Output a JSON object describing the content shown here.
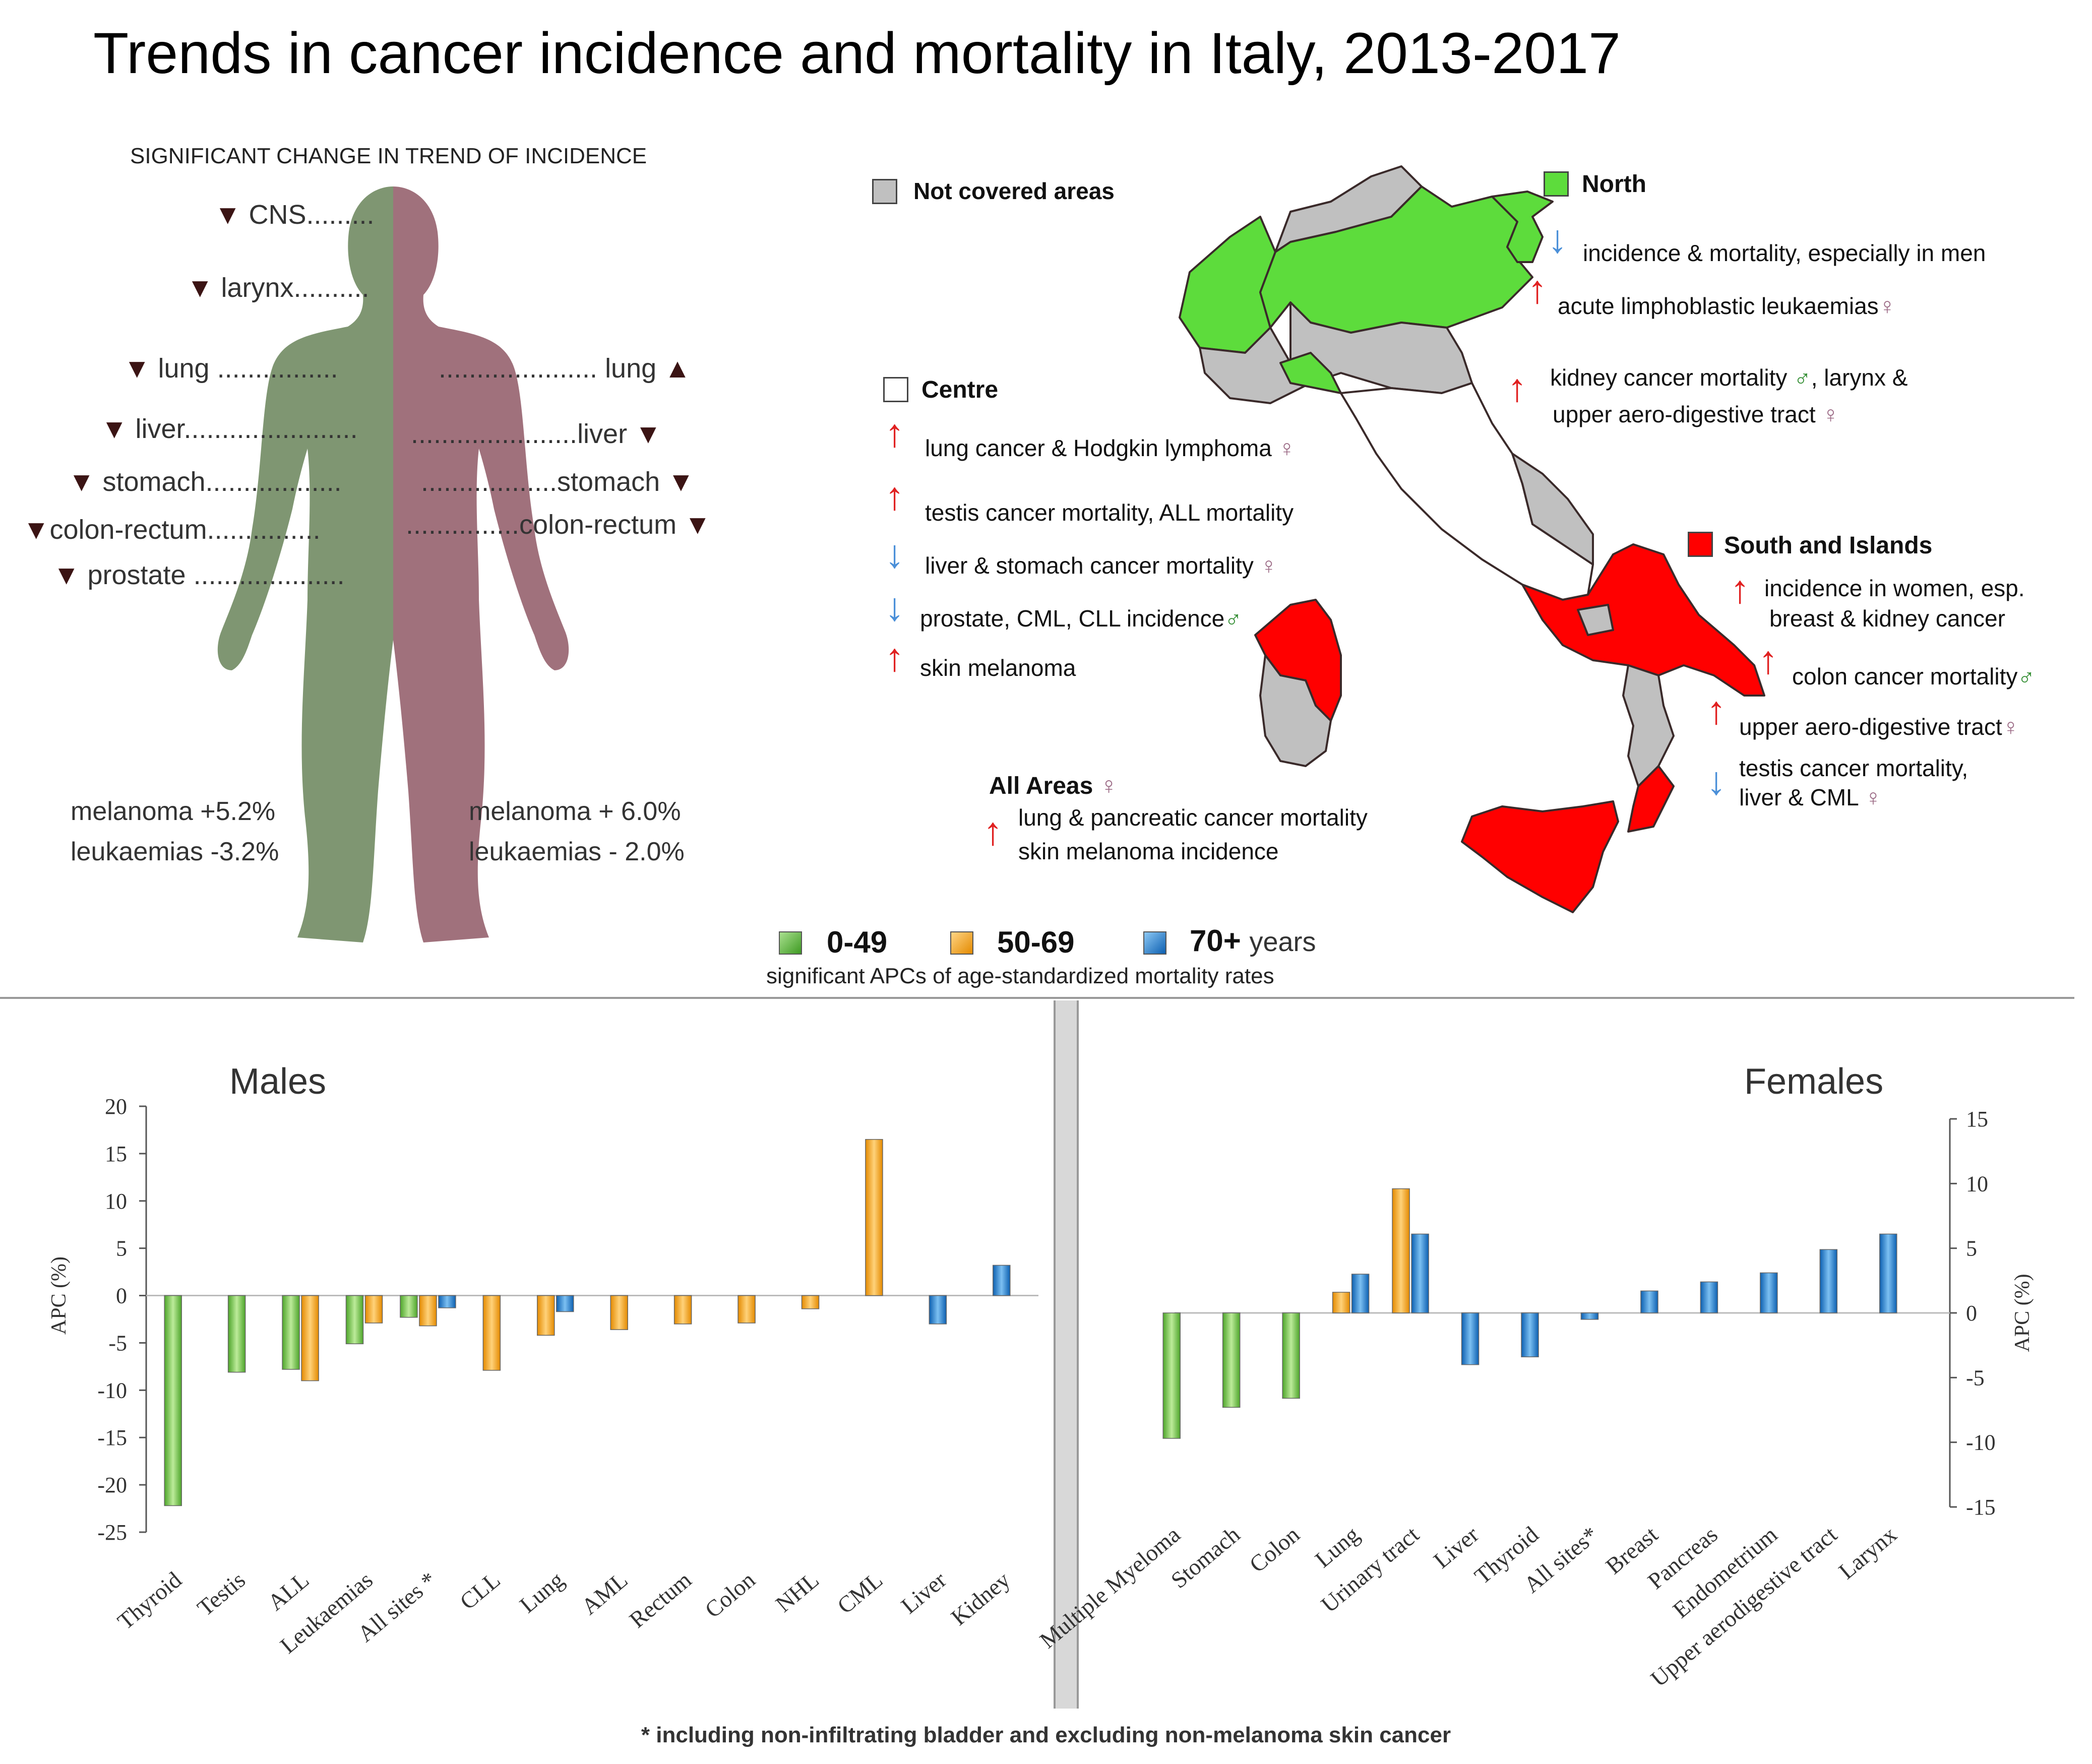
{
  "title": "Trends in cancer incidence and mortality in Italy, 2013-2017",
  "body_panel": {
    "caption": "SIGNIFICANT CHANGE IN TREND OF INCIDENCE",
    "male_organs": [
      {
        "arrow": "▼",
        "text": "CNS........."
      },
      {
        "arrow": "▼",
        "text": "larynx.........."
      },
      {
        "arrow": "▼",
        "text": "lung ................"
      },
      {
        "arrow": "▼",
        "text": "liver......................."
      },
      {
        "arrow": "▼",
        "text": "stomach.................."
      },
      {
        "arrow": "▼",
        "text": "colon-rectum..............."
      },
      {
        "arrow": "▼",
        "text": "prostate ...................."
      }
    ],
    "female_organs": [
      {
        "arrow": "▲",
        "text": "..................... lung"
      },
      {
        "arrow": "▼",
        "text": "......................liver"
      },
      {
        "arrow": "▼",
        "text": "..................stomach"
      },
      {
        "arrow": "▼",
        "text": "...............colon-rectum"
      }
    ],
    "male_stats": [
      "melanoma +5.2%",
      "leukaemias -3.2%"
    ],
    "female_stats": [
      "melanoma + 6.0%",
      "leukaemias - 2.0%"
    ],
    "colors": {
      "male": "#7f9672",
      "female": "#a0717c"
    }
  },
  "map_panel": {
    "not_covered": "Not covered areas",
    "north": {
      "title": "North",
      "notes": [
        "incidence & mortality, especially in men",
        "acute limphoblastic leukaemias",
        "kidney cancer mortality",
        ", larynx &",
        "upper aero-digestive tract"
      ]
    },
    "centre": {
      "title": "Centre",
      "notes": [
        "lung cancer & Hodgkin lymphoma",
        "testis cancer mortality, ALL mortality",
        "liver & stomach cancer mortality",
        "prostate, CML, CLL incidence",
        "skin melanoma"
      ]
    },
    "south": {
      "title": "South and Islands",
      "notes": [
        "incidence in women, esp.",
        "breast & kidney cancer",
        "colon cancer mortality",
        "upper aero-digestive tract",
        "testis cancer mortality,",
        "liver & CML"
      ]
    },
    "all_areas": {
      "title": "All Areas",
      "notes": [
        "lung & pancreatic cancer mortality",
        "skin melanoma incidence"
      ]
    },
    "symbols": {
      "female": "♀",
      "male": "♂",
      "up": "↑",
      "down": "↓"
    },
    "colors": {
      "north": "#5ddc3c",
      "south": "#ff0000",
      "not_covered": "#c0c0c0",
      "centre": "#ffffff"
    }
  },
  "age_legend": {
    "groups": [
      "0-49",
      "50-69",
      "70+"
    ],
    "suffix": "years",
    "caption": "significant APCs of age-standardized mortality rates",
    "colors": [
      "#5cb83a",
      "#f5a41a",
      "#1f7fd1"
    ]
  },
  "footnote": "* including non-infiltrating bladder and excluding non-melanoma skin cancer",
  "chart_data": [
    {
      "type": "bar",
      "title": "Males",
      "ylabel": "APC (%)",
      "ylim": [
        -25,
        20
      ],
      "yticks": [
        20,
        15,
        10,
        5,
        0,
        -5,
        -10,
        -15,
        -20,
        -25
      ],
      "tick_labels": [
        "20",
        "15",
        "10",
        "5",
        "0",
        "-5",
        "-10",
        "-15",
        "-20",
        "-25"
      ],
      "categories": [
        "Thyroid",
        "Testis",
        "ALL",
        "Leukaemias",
        "All sites *",
        "CLL",
        "Lung",
        "AML",
        "Rectum",
        "Colon",
        "NHL",
        "CML",
        "Liver",
        "Kidney"
      ],
      "series": [
        {
          "name": "0-49",
          "values": [
            -22.2,
            -8.1,
            -7.8,
            -5.1,
            -2.3,
            null,
            null,
            null,
            null,
            null,
            null,
            null,
            null,
            null
          ]
        },
        {
          "name": "50-69",
          "values": [
            null,
            null,
            -9.0,
            -2.9,
            -3.2,
            -7.9,
            -4.2,
            -3.6,
            -3.0,
            -2.9,
            -1.4,
            16.5,
            null,
            null
          ]
        },
        {
          "name": "70+",
          "values": [
            null,
            null,
            null,
            null,
            -1.3,
            null,
            -1.7,
            null,
            null,
            null,
            null,
            null,
            -3.0,
            3.2
          ]
        }
      ]
    },
    {
      "type": "bar",
      "title": "Females",
      "ylabel": "APC (%)",
      "ylim": [
        -15,
        15
      ],
      "yticks": [
        15,
        10,
        5,
        0,
        -5,
        -10,
        -15
      ],
      "tick_labels": [
        "15",
        "10",
        "5",
        "0",
        "-5",
        "-10",
        "-15"
      ],
      "categories": [
        "Multiple Myeloma",
        "Stomach",
        "Colon",
        "Lung",
        "Urinary tract",
        "Liver",
        "Thyroid",
        "All sites*",
        "Breast",
        "Pancreas",
        "Endometrium",
        "Upper aerodigestive tract",
        "Larynx"
      ],
      "series": [
        {
          "name": "0-49",
          "values": [
            -9.7,
            -7.3,
            -6.6,
            null,
            null,
            null,
            null,
            null,
            null,
            null,
            null,
            null,
            null
          ]
        },
        {
          "name": "50-69",
          "values": [
            null,
            null,
            null,
            1.6,
            9.6,
            null,
            null,
            null,
            null,
            null,
            null,
            null,
            null
          ]
        },
        {
          "name": "70+",
          "values": [
            null,
            null,
            null,
            3.0,
            6.1,
            -4.0,
            -3.4,
            -0.5,
            1.7,
            2.4,
            3.1,
            4.9,
            6.1
          ]
        }
      ]
    }
  ]
}
